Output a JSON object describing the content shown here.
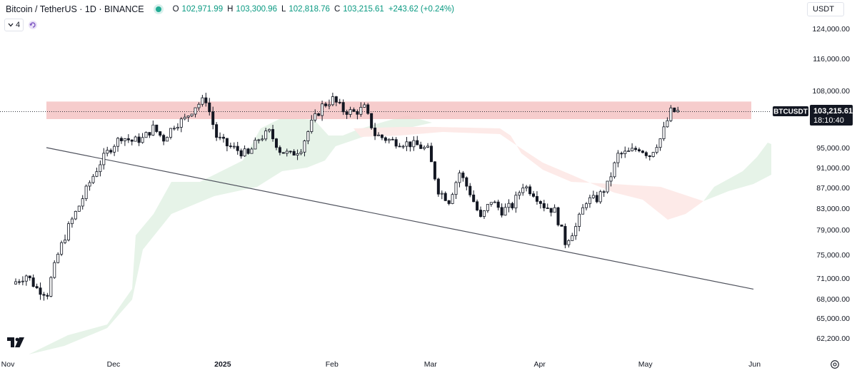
{
  "header": {
    "title": "Bitcoin / TetherUS · 1D · BINANCE",
    "ohlc": [
      {
        "k": "O",
        "v": "102,971.99"
      },
      {
        "k": "H",
        "v": "103,300.96"
      },
      {
        "k": "L",
        "v": "102,818.76"
      },
      {
        "k": "C",
        "v": "103,215.61"
      }
    ],
    "change": "+243.62 (+0.24%)",
    "status_color": "#22ab94"
  },
  "indicators": {
    "toggle_icon": "chevron-down-icon",
    "count": "4",
    "sync_icon": "refresh-icon"
  },
  "currency": "USDT",
  "price_tag": {
    "symbol": "BTCUSDT",
    "price": "103,215.61",
    "countdown": "18:10:40"
  },
  "colors": {
    "up": "#089981",
    "down": "#f23645",
    "candle": "#131722",
    "resistance_zone": "#f5c3c3",
    "cloud_green": "#e3f2e6",
    "cloud_red": "#fde9e7"
  },
  "chart_data": {
    "type": "candlestick",
    "y_ticks": [
      124000,
      116000,
      108000,
      95000,
      91000,
      87000,
      83000,
      79000,
      75000,
      71000,
      68000,
      65000,
      62200
    ],
    "y_tick_labels": [
      "124,000.00",
      "116,000.00",
      "108,000.00",
      "95,000.00",
      "91,000.00",
      "87,000.00",
      "83,000.00",
      "79,000.00",
      "75,000.00",
      "71,000.00",
      "68,000.00",
      "65,000.00",
      "62,200.00"
    ],
    "x_labels": [
      "Nov",
      "Dec",
      "2025",
      "Feb",
      "Mar",
      "Apr",
      "May",
      "Jun"
    ],
    "x_label_dates": [
      "2024-11-01",
      "2024-12-01",
      "2025-01-01",
      "2025-02-01",
      "2025-03-01",
      "2025-04-01",
      "2025-05-01",
      "2025-06-01"
    ],
    "close_series": [
      [
        0,
        70500
      ],
      [
        3,
        71500
      ],
      [
        6,
        69500
      ],
      [
        9,
        68800
      ],
      [
        12,
        75000
      ],
      [
        15,
        79500
      ],
      [
        18,
        83500
      ],
      [
        21,
        88000
      ],
      [
        24,
        92000
      ],
      [
        27,
        95000
      ],
      [
        30,
        97500
      ],
      [
        33,
        96500
      ],
      [
        36,
        97000
      ],
      [
        39,
        99500
      ],
      [
        42,
        97000
      ],
      [
        45,
        100200
      ],
      [
        48,
        101500
      ],
      [
        51,
        104500
      ],
      [
        54,
        106000
      ],
      [
        57,
        97500
      ],
      [
        60,
        95500
      ],
      [
        63,
        94500
      ],
      [
        66,
        93500
      ],
      [
        69,
        97000
      ],
      [
        72,
        98500
      ],
      [
        75,
        94500
      ],
      [
        78,
        93500
      ],
      [
        81,
        95000
      ],
      [
        84,
        100500
      ],
      [
        87,
        104500
      ],
      [
        90,
        106000
      ],
      [
        93,
        103500
      ],
      [
        96,
        103000
      ],
      [
        99,
        104000
      ],
      [
        102,
        98000
      ],
      [
        105,
        97000
      ],
      [
        108,
        96300
      ],
      [
        111,
        96000
      ],
      [
        114,
        95500
      ],
      [
        117,
        94500
      ],
      [
        120,
        86500
      ],
      [
        123,
        84500
      ],
      [
        126,
        90000
      ],
      [
        129,
        86000
      ],
      [
        132,
        81000
      ],
      [
        135,
        84500
      ],
      [
        138,
        82500
      ],
      [
        141,
        83500
      ],
      [
        144,
        87500
      ],
      [
        147,
        86000
      ],
      [
        150,
        83500
      ],
      [
        153,
        82500
      ],
      [
        156,
        77000
      ],
      [
        159,
        79500
      ],
      [
        162,
        84500
      ],
      [
        165,
        84800
      ],
      [
        168,
        87500
      ],
      [
        171,
        93500
      ],
      [
        174,
        94000
      ],
      [
        177,
        95000
      ],
      [
        180,
        93500
      ],
      [
        183,
        97000
      ],
      [
        186,
        103200
      ],
      [
        188,
        103200
      ]
    ],
    "resistance_zone": {
      "from": 101500,
      "to": 105500
    },
    "trendline": [
      {
        "x": 0,
        "y": 95000
      },
      {
        "x": 211,
        "y": 69400
      }
    ],
    "last_price": 103215.61
  }
}
